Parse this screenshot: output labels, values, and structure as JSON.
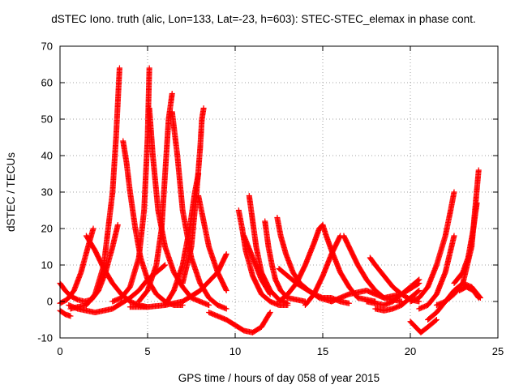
{
  "chart_data": {
    "type": "scatter",
    "title": "dSTEC Iono. truth (alic, Lon=133, Lat=-23, h=603): STEC-STEC_elemax in phase cont.",
    "xlabel": "GPS time / hours of day 058 of year 2015",
    "ylabel": "dSTEC  / TECUs",
    "xlim": [
      0,
      25
    ],
    "ylim": [
      -10,
      70
    ],
    "xticks": [
      0,
      5,
      10,
      15,
      20,
      25
    ],
    "yticks": [
      -10,
      0,
      10,
      20,
      30,
      40,
      50,
      60,
      70
    ],
    "grid": true,
    "legend": "none",
    "marker": "+",
    "color": "#ff0000",
    "series": [
      {
        "x": [
          0.0,
          0.4,
          0.8,
          1.2,
          1.6,
          1.9
        ],
        "y": [
          -0.5,
          0.5,
          3,
          8,
          15,
          20
        ]
      },
      {
        "x": [
          0.0,
          0.3,
          0.6,
          1.0,
          1.4,
          1.8,
          2.2,
          2.6,
          3.0,
          3.3
        ],
        "y": [
          5,
          3,
          1.5,
          0.5,
          0,
          0.5,
          3,
          8,
          15,
          21
        ]
      },
      {
        "x": [
          0.0,
          0.3,
          0.6
        ],
        "y": [
          -2.5,
          -3.5,
          -4
        ]
      },
      {
        "x": [
          0.6,
          1.0,
          1.5,
          2.0,
          2.5,
          3.0,
          3.2,
          3.4
        ],
        "y": [
          -2,
          -1.5,
          -1,
          2,
          10,
          30,
          45,
          64
        ]
      },
      {
        "x": [
          1.5,
          2.0,
          2.5,
          3.0,
          3.5,
          4.0,
          4.5,
          5.0
        ],
        "y": [
          18,
          14,
          9,
          5,
          2,
          0,
          -1,
          -1.5
        ]
      },
      {
        "x": [
          0.5,
          1.0,
          1.5,
          2.0,
          2.5,
          3.0,
          3.5,
          4.0,
          4.5,
          5.0,
          5.5,
          6.0
        ],
        "y": [
          -1,
          -2,
          -2.5,
          -3,
          -2.5,
          -2,
          -0.5,
          1,
          3,
          6,
          8,
          10
        ]
      },
      {
        "x": [
          3.6,
          3.8,
          4.0,
          4.3,
          4.6,
          5.0,
          5.5,
          6.0,
          6.5,
          7.0
        ],
        "y": [
          44,
          38,
          30,
          20,
          12,
          6,
          2,
          0,
          -1,
          -1
        ]
      },
      {
        "x": [
          3.0,
          3.5,
          4.0,
          4.5,
          4.8,
          5.0,
          5.1
        ],
        "y": [
          0,
          1,
          4,
          12,
          25,
          45,
          64
        ]
      },
      {
        "x": [
          5.1,
          5.3,
          5.6,
          6.0,
          6.5,
          7.0,
          7.5,
          8.0,
          8.5
        ],
        "y": [
          53,
          40,
          25,
          15,
          8,
          4,
          1,
          0,
          -1
        ]
      },
      {
        "x": [
          4.5,
          5.0,
          5.5,
          5.8,
          6.0,
          6.2,
          6.4
        ],
        "y": [
          0,
          3,
          10,
          20,
          35,
          50,
          57
        ]
      },
      {
        "x": [
          6.4,
          6.7,
          7.0,
          7.5,
          8.0,
          8.5,
          9.0,
          9.5
        ],
        "y": [
          52,
          40,
          25,
          12,
          5,
          1,
          -1,
          -2
        ]
      },
      {
        "x": [
          6.0,
          6.5,
          7.0,
          7.4,
          7.7,
          7.9
        ],
        "y": [
          -1,
          3,
          10,
          20,
          30,
          35
        ]
      },
      {
        "x": [
          7.9,
          8.2,
          8.5,
          9.0,
          9.5
        ],
        "y": [
          29,
          22,
          15,
          8,
          3
        ]
      },
      {
        "x": [
          7.0,
          7.5,
          7.8,
          8.0,
          8.1,
          8.2
        ],
        "y": [
          5,
          15,
          30,
          42,
          50,
          53
        ]
      },
      {
        "x": [
          8.5,
          9.0,
          9.5,
          10.0,
          10.5,
          11.0,
          11.5,
          12.0
        ],
        "y": [
          -3,
          -4,
          -5,
          -6.5,
          -8,
          -8.5,
          -7,
          -3
        ]
      },
      {
        "x": [
          4.0,
          5.0,
          6.0,
          7.0,
          8.0,
          9.0,
          9.5
        ],
        "y": [
          -1.5,
          -1.5,
          -1,
          0,
          3,
          8,
          13
        ]
      },
      {
        "x": [
          10.2,
          10.4,
          10.6,
          11.0,
          11.5,
          12.0,
          12.5,
          13.0
        ],
        "y": [
          25,
          20,
          14,
          7,
          2,
          0,
          -1,
          -1
        ]
      },
      {
        "x": [
          10.8,
          11.0,
          11.2,
          11.5,
          12.0,
          12.5,
          13.0
        ],
        "y": [
          29,
          22,
          15,
          8,
          3,
          0.5,
          -0.5
        ]
      },
      {
        "x": [
          11.7,
          11.9,
          12.1,
          12.3,
          12.6,
          13.0,
          14.0
        ],
        "y": [
          22,
          15,
          10,
          6,
          3,
          1,
          0
        ]
      },
      {
        "x": [
          10.5,
          11.0,
          11.5,
          12.0
        ],
        "y": [
          18,
          12,
          6,
          2
        ]
      },
      {
        "x": [
          12.4,
          12.6,
          12.9,
          13.3,
          13.7,
          14.2,
          14.8,
          15.5
        ],
        "y": [
          23,
          18,
          13,
          8,
          5,
          3,
          1,
          0
        ]
      },
      {
        "x": [
          12.5,
          13.0,
          13.5,
          14.0,
          14.5,
          14.8,
          15.0
        ],
        "y": [
          0,
          2,
          5,
          10,
          16,
          20,
          21
        ]
      },
      {
        "x": [
          15.0,
          15.2,
          15.5,
          16.0,
          16.5,
          17.0,
          18.0
        ],
        "y": [
          21,
          18,
          14,
          8,
          4,
          1,
          0
        ]
      },
      {
        "x": [
          12.5,
          13.5,
          14.5,
          15.0,
          15.5,
          16.0,
          16.5
        ],
        "y": [
          9,
          5,
          2,
          1,
          1,
          0,
          -0.5
        ]
      },
      {
        "x": [
          14.0,
          14.5,
          15.0,
          15.5,
          16.0
        ],
        "y": [
          -1,
          2,
          7,
          13,
          18
        ]
      },
      {
        "x": [
          16.2,
          16.5,
          17.0,
          17.5,
          18.0,
          18.5,
          19.5
        ],
        "y": [
          18,
          15,
          10,
          6,
          3,
          1,
          0
        ]
      },
      {
        "x": [
          17.7,
          18.0,
          18.5,
          19.0,
          19.5,
          20.0,
          20.5
        ],
        "y": [
          12,
          10,
          7,
          4,
          2,
          0.5,
          0
        ]
      },
      {
        "x": [
          15.5,
          16.5,
          17.5,
          18.5,
          19.5,
          20.5
        ],
        "y": [
          0,
          2,
          3,
          1,
          2,
          5
        ]
      },
      {
        "x": [
          17.5,
          18.0,
          18.5,
          19.0,
          19.5,
          20.0,
          20.5
        ],
        "y": [
          0,
          -0.5,
          -1,
          0,
          2,
          4,
          6
        ]
      },
      {
        "x": [
          18.0,
          18.5,
          19.0,
          19.5,
          20.0,
          20.5
        ],
        "y": [
          -2,
          -2.5,
          -2,
          -1,
          1,
          3
        ]
      },
      {
        "x": [
          20.0,
          20.3,
          20.6,
          21.0,
          21.5
        ],
        "y": [
          -5.5,
          -7,
          -8.5,
          -7,
          -5
        ]
      },
      {
        "x": [
          20.0,
          20.5,
          21.0,
          21.5,
          22.0,
          22.3,
          22.5
        ],
        "y": [
          0,
          1,
          4,
          10,
          18,
          25,
          30
        ]
      },
      {
        "x": [
          20.5,
          21.0,
          21.5,
          22.0,
          22.5
        ],
        "y": [
          -2,
          -1,
          2,
          8,
          18
        ]
      },
      {
        "x": [
          21.5,
          22.0,
          22.5,
          23.0,
          23.5,
          23.9
        ],
        "y": [
          -1,
          0,
          2,
          5,
          15,
          36
        ]
      },
      {
        "x": [
          22.5,
          23.0,
          23.3,
          23.6,
          23.8
        ],
        "y": [
          5,
          8,
          12,
          20,
          27
        ]
      },
      {
        "x": [
          21.0,
          21.5,
          22.0,
          22.5,
          23.0,
          23.5,
          24.0
        ],
        "y": [
          -5,
          -3,
          0,
          3,
          5,
          4,
          1
        ]
      },
      {
        "x": [
          22.8,
          23.2,
          23.6,
          23.9
        ],
        "y": [
          3,
          4,
          3,
          1
        ]
      }
    ]
  }
}
